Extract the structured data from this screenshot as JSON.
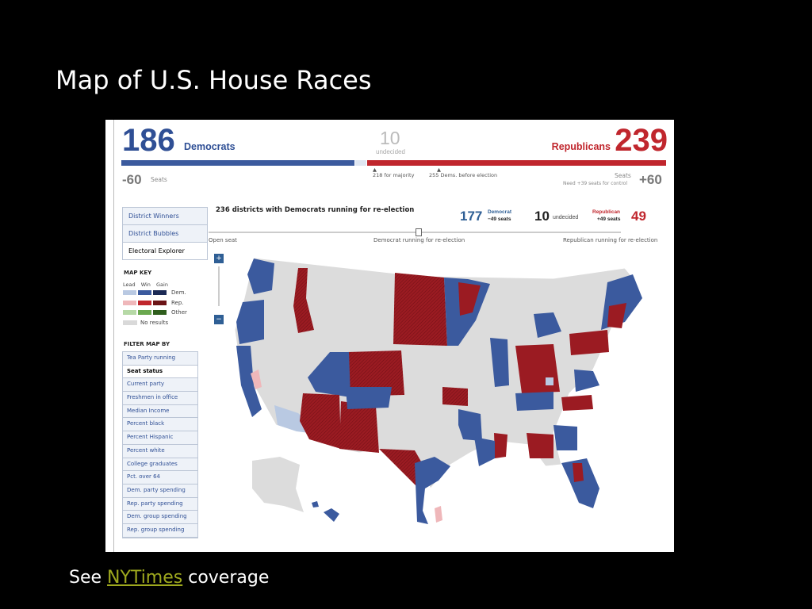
{
  "slide": {
    "title": "Map of U.S. House Races"
  },
  "scoreboard": {
    "dem_count": "186",
    "dem_label": "Democrats",
    "undecided_count": "10",
    "undecided_label": "undecided",
    "rep_count": "239",
    "rep_label": "Republicans",
    "majority_note": "218 for majority",
    "before_note": "255 Dems. before election",
    "dem_change": "-60",
    "dem_seats_label": "Seats",
    "rep_change": "+60",
    "rep_seats_label": "Seats",
    "rep_control_note": "Need +39 seats for control"
  },
  "view_tabs": [
    "District Winners",
    "District Bubbles",
    "Electoral Explorer"
  ],
  "map_key": {
    "title": "MAP KEY",
    "columns": [
      "Lead",
      "Win",
      "Gain"
    ],
    "rows": [
      {
        "label": "Dem.",
        "colors": [
          "#b9c9e2",
          "#3b5a9e",
          "#1b2a55"
        ]
      },
      {
        "label": "Rep.",
        "colors": [
          "#efb7ba",
          "#c0262d",
          "#6b1416"
        ]
      },
      {
        "label": "Other",
        "colors": [
          "#b6d9a6",
          "#6aa84f",
          "#2f5e1d"
        ]
      },
      {
        "label": "No results",
        "colors": [
          "#d9d9d9"
        ]
      }
    ]
  },
  "filter": {
    "title": "FILTER MAP BY",
    "items": [
      "Tea Party running",
      "Seat status",
      "Current party",
      "Freshmen in office",
      "Median Income",
      "Percent black",
      "Percent Hispanic",
      "Percent white",
      "College graduates",
      "Pct. over 64",
      "Dem. party spending",
      "Rep. party spending",
      "Dem. group spending",
      "Rep. group spending"
    ]
  },
  "explorer": {
    "heading": "236 districts with Democrats running for re-election",
    "dem_num": "177",
    "dem_party": "Democrat",
    "dem_seats": "−49 seats",
    "und_num": "10",
    "und_label": "undecided",
    "rep_party": "Republican",
    "rep_seats": "+49 seats",
    "rep_num": "49",
    "slider_labels": [
      "Open seat",
      "Democrat running for re-election",
      "Republican running for re-election"
    ]
  },
  "colors": {
    "dem": "#3b5a9e",
    "rep": "#9b1b22",
    "none": "#dcdcdc"
  },
  "caption": {
    "prefix": "See ",
    "link": "NYTimes",
    "suffix": " coverage"
  }
}
